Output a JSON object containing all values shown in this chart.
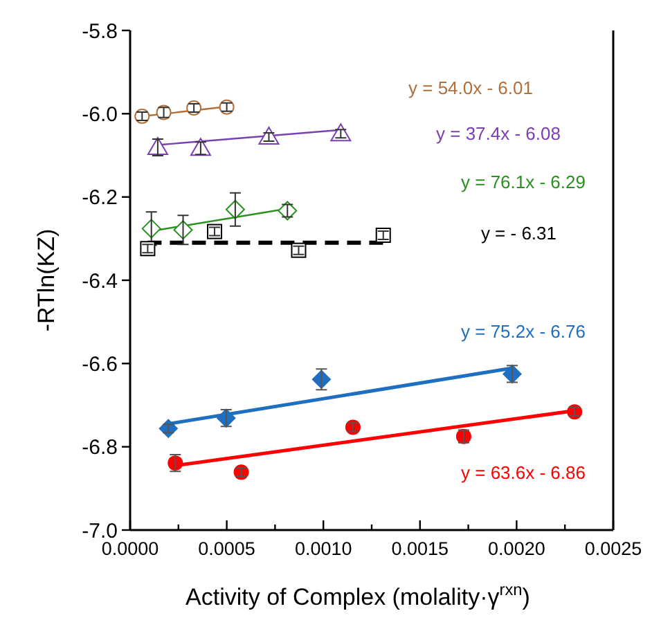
{
  "chart_data": {
    "type": "scatter",
    "xlabel": "Activity of Complex  (molality·γ$^{rxn}$)",
    "ylabel": "-RTln(KZ)",
    "xlim": [
      0,
      0.0025
    ],
    "ylim": [
      -7.0,
      -5.8
    ],
    "xticks": [
      {
        "value": 0,
        "label": "0.0000"
      },
      {
        "value": 0.00025,
        "label": null
      },
      {
        "value": 0.0005,
        "label": "0.0005"
      },
      {
        "value": 0.00075,
        "label": null
      },
      {
        "value": 0.001,
        "label": "0.0010"
      },
      {
        "value": 0.00125,
        "label": null
      },
      {
        "value": 0.0015,
        "label": "0.0015"
      },
      {
        "value": 0.00175,
        "label": null
      },
      {
        "value": 0.002,
        "label": "0.0020"
      },
      {
        "value": 0.00225,
        "label": null
      },
      {
        "value": 0.0025,
        "label": "0.0025"
      }
    ],
    "yticks": [
      {
        "value": -7.0,
        "label": "-7.0"
      },
      -6.8,
      -6.6,
      -6.4,
      -6.2,
      {
        "value": -6.0,
        "label": "-6.0"
      },
      -5.8
    ],
    "grid": false,
    "series": [
      {
        "marker": "circle",
        "color": "#b0703c",
        "x": [
          6.2e-05,
          0.000174,
          0.00033,
          0.0005
        ],
        "values": [
          -6.006,
          -5.997,
          -5.986,
          -5.984
        ],
        "errors": [
          0.01,
          0.012,
          0.01,
          0.01
        ]
      },
      {
        "marker": "triangle",
        "color": "#7a3fb0",
        "x": [
          0.000143,
          0.000365,
          0.000718,
          0.00109
        ],
        "values": [
          -6.081,
          -6.083,
          -6.056,
          -6.048
        ],
        "errors": [
          0.02,
          0.015,
          0.01,
          0.01
        ]
      },
      {
        "marker": "diamond",
        "color": "#2a9020",
        "x": [
          0.00011,
          0.000274,
          0.000544,
          0.000814
        ],
        "values": [
          -6.276,
          -6.279,
          -6.23,
          -6.233
        ],
        "errors": [
          0.04,
          0.035,
          0.04,
          0.015
        ]
      },
      {
        "marker": "square",
        "color": "#000000",
        "x": [
          9.1e-05,
          0.000437,
          0.000872,
          0.00131
        ],
        "values": [
          -6.324,
          -6.283,
          -6.328,
          -6.292
        ],
        "errors": [
          0.01,
          0.01,
          0.01,
          0.01
        ]
      },
      {
        "marker": "diamond",
        "color": "#1f6fc0",
        "x": [
          0.000198,
          0.000497,
          0.00099,
          0.001977
        ],
        "values": [
          -6.756,
          -6.731,
          -6.638,
          -6.625
        ],
        "errors": [
          0.01,
          0.02,
          0.025,
          0.02
        ]
      },
      {
        "marker": "circle",
        "color": "#ff0000",
        "x": [
          0.000234,
          0.000575,
          0.001153,
          0.001726,
          0.0023
        ],
        "values": [
          -6.839,
          -6.861,
          -6.753,
          -6.775,
          -6.716
        ],
        "errors": [
          0.02,
          0.01,
          0.01,
          0.015,
          0.01
        ]
      },
      {
        "type": "line",
        "marker": "none",
        "name": "y = 54.0x - 6.01",
        "color": "#b0703c",
        "line_style": "solid",
        "x": [
          5e-05,
          0.00052
        ],
        "values": [
          -6.007,
          -5.982
        ]
      },
      {
        "type": "line",
        "marker": "none",
        "name": "y = 37.4x - 6.08",
        "color": "#7a3fb0",
        "line_style": "solid",
        "x": [
          0.000143,
          0.00109
        ],
        "values": [
          -6.075,
          -6.039
        ]
      },
      {
        "type": "line",
        "marker": "none",
        "name": "y = 76.1x - 6.29",
        "color": "#2a9020",
        "line_style": "solid",
        "x": [
          0.00011,
          0.000814
        ],
        "values": [
          -6.282,
          -6.228
        ]
      },
      {
        "type": "line",
        "marker": "none",
        "name": "y =  - 6.31",
        "color": "#000000",
        "line_style": "dashed",
        "x": [
          9.1e-05,
          0.00131
        ],
        "values": [
          -6.31,
          -6.31
        ]
      },
      {
        "type": "line",
        "marker": "none",
        "name": "y = 75.2x - 6.76",
        "color": "#1f6fc0",
        "line_style": "solid",
        "x": [
          0.000198,
          0.001977
        ],
        "values": [
          -6.745,
          -6.611
        ]
      },
      {
        "type": "line",
        "marker": "none",
        "name": "y = 63.6x - 6.86",
        "color": "#ff0000",
        "line_style": "solid",
        "x": [
          0.00022,
          0.00232
        ],
        "values": [
          -6.846,
          -6.712
        ]
      }
    ]
  }
}
